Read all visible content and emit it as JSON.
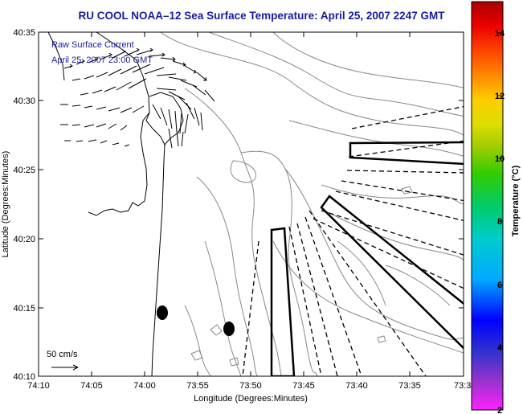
{
  "title": "RU COOL  NOAA–12  Sea Surface Temperature:  April 25, 2007 2247 GMT",
  "legend": {
    "line1": "Raw Surface Current",
    "line2": "April 25, 2007 23:00 GMT"
  },
  "scale_label": "50 cm/s",
  "axes": {
    "xlabel": "Longitude (Degrees:Minutes)",
    "ylabel": "Latitude (Degrees:Minutes)",
    "xticks": [
      "74:10",
      "74:05",
      "74:00",
      "73:55",
      "73:50",
      "73:45",
      "73:40",
      "73:35",
      "73:3"
    ],
    "yticks": [
      "40:35",
      "40:30",
      "40:25",
      "40:20",
      "40:15",
      "40:10"
    ]
  },
  "colorbar": {
    "label": "Temperature (°C)",
    "ticks": [
      "14",
      "12",
      "10",
      "8",
      "6",
      "4",
      "2"
    ],
    "range": [
      2,
      15
    ],
    "colors": [
      "#ff22ff",
      "#9933cc",
      "#3333cc",
      "#0000ff",
      "#00aaff",
      "#00cccc",
      "#00cc66",
      "#33cc00",
      "#99cc00",
      "#dddd00",
      "#ffcc00",
      "#ff8800",
      "#ff4400",
      "#ee0000",
      "#aa0000"
    ]
  },
  "chart_data": {
    "type": "map",
    "region": "NY Bight / New Jersey coast",
    "xlim": [
      "74:10",
      "73:30"
    ],
    "ylim": [
      "40:10",
      "40:35"
    ],
    "markers": [
      {
        "lon": "73:59",
        "lat": "40:14.6"
      },
      {
        "lon": "73:52.6",
        "lat": "40:13.5"
      }
    ]
  }
}
